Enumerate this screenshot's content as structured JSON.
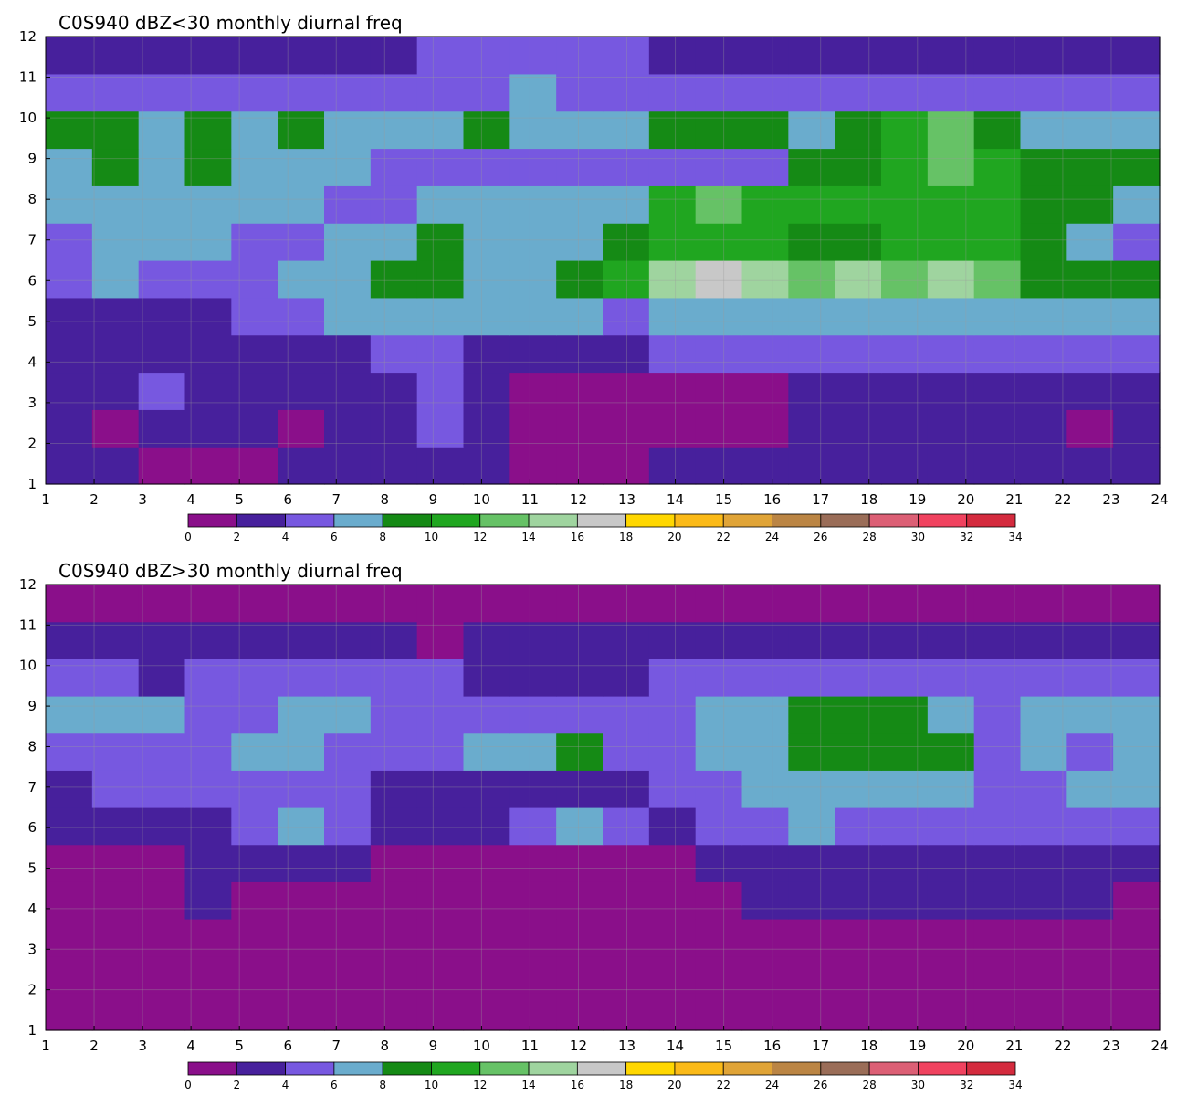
{
  "chart_data": [
    {
      "type": "contour",
      "title": "C0S940 dBZ<30 monthly diurnal freq",
      "xlabel": "",
      "ylabel": "",
      "x_ticks": [
        1,
        2,
        3,
        4,
        5,
        6,
        7,
        8,
        9,
        10,
        11,
        12,
        13,
        14,
        15,
        16,
        17,
        18,
        19,
        20,
        21,
        22,
        23,
        24
      ],
      "y_ticks": [
        1,
        2,
        3,
        4,
        5,
        6,
        7,
        8,
        9,
        10,
        11,
        12
      ],
      "xlim": [
        1,
        24
      ],
      "ylim": [
        1,
        12
      ],
      "colorbar": {
        "levels": [
          0,
          2,
          4,
          6,
          8,
          10,
          12,
          14,
          16,
          18,
          20,
          22,
          24,
          26,
          28,
          30,
          32,
          34
        ],
        "colors": [
          "#8a0f8a",
          "#47209c",
          "#7758e0",
          "#6aaccd",
          "#158a15",
          "#20a620",
          "#66c266",
          "#9fd49f",
          "#c8c8c8",
          "#ffd700",
          "#fbba18",
          "#e0a437",
          "#bb8544",
          "#9a6d58",
          "#dc5f75",
          "#f0425f",
          "#d42b3e"
        ]
      },
      "grid": [
        [
          1,
          1,
          0,
          0,
          0,
          1,
          1,
          1,
          1,
          1,
          0,
          0,
          0,
          1,
          1,
          1,
          1,
          1,
          1,
          1,
          1,
          1,
          1,
          1
        ],
        [
          1,
          0,
          1,
          1,
          1,
          0,
          1,
          1,
          2,
          1,
          0,
          0,
          0,
          0,
          0,
          0,
          1,
          1,
          1,
          1,
          1,
          1,
          0,
          1
        ],
        [
          1,
          1,
          2,
          1,
          1,
          1,
          1,
          1,
          2,
          1,
          0,
          0,
          0,
          0,
          0,
          0,
          1,
          1,
          1,
          1,
          1,
          1,
          1,
          1
        ],
        [
          1,
          1,
          1,
          1,
          1,
          1,
          1,
          2,
          2,
          1,
          1,
          1,
          1,
          2,
          2,
          2,
          2,
          2,
          2,
          2,
          2,
          2,
          2,
          2
        ],
        [
          1,
          1,
          1,
          1,
          2,
          2,
          3,
          3,
          3,
          3,
          3,
          3,
          2,
          3,
          3,
          3,
          3,
          3,
          3,
          3,
          3,
          3,
          3,
          3
        ],
        [
          2,
          3,
          2,
          2,
          2,
          3,
          3,
          4,
          4,
          3,
          3,
          4,
          5,
          7,
          8,
          7,
          6,
          7,
          6,
          7,
          6,
          4,
          4,
          4
        ],
        [
          2,
          3,
          3,
          3,
          2,
          2,
          3,
          3,
          4,
          3,
          3,
          3,
          4,
          5,
          5,
          5,
          4,
          4,
          5,
          5,
          5,
          4,
          3,
          2
        ],
        [
          3,
          3,
          3,
          3,
          3,
          3,
          2,
          2,
          3,
          3,
          3,
          3,
          3,
          5,
          6,
          5,
          5,
          5,
          5,
          5,
          5,
          4,
          4,
          3
        ],
        [
          3,
          4,
          3,
          4,
          3,
          3,
          3,
          2,
          2,
          2,
          2,
          2,
          2,
          2,
          2,
          2,
          4,
          4,
          5,
          6,
          5,
          4,
          4,
          4
        ],
        [
          4,
          4,
          3,
          4,
          3,
          4,
          3,
          3,
          3,
          4,
          3,
          3,
          3,
          4,
          4,
          4,
          3,
          4,
          5,
          6,
          4,
          3,
          3,
          3
        ],
        [
          2,
          2,
          2,
          2,
          2,
          2,
          2,
          2,
          2,
          2,
          3,
          2,
          2,
          2,
          2,
          2,
          2,
          2,
          2,
          2,
          2,
          2,
          2,
          2
        ],
        [
          1,
          1,
          1,
          1,
          1,
          1,
          1,
          1,
          2,
          2,
          2,
          2,
          2,
          1,
          1,
          1,
          1,
          1,
          1,
          1,
          1,
          1,
          1,
          1
        ]
      ]
    },
    {
      "type": "contour",
      "title": "C0S940 dBZ>30 monthly diurnal freq",
      "xlabel": "",
      "ylabel": "",
      "x_ticks": [
        1,
        2,
        3,
        4,
        5,
        6,
        7,
        8,
        9,
        10,
        11,
        12,
        13,
        14,
        15,
        16,
        17,
        18,
        19,
        20,
        21,
        22,
        23,
        24
      ],
      "y_ticks": [
        1,
        2,
        3,
        4,
        5,
        6,
        7,
        8,
        9,
        10,
        11,
        12
      ],
      "xlim": [
        1,
        24
      ],
      "ylim": [
        1,
        12
      ],
      "colorbar": {
        "levels": [
          0,
          2,
          4,
          6,
          8,
          10,
          12,
          14,
          16,
          18,
          20,
          22,
          24,
          26,
          28,
          30,
          32,
          34
        ],
        "colors": [
          "#8a0f8a",
          "#47209c",
          "#7758e0",
          "#6aaccd",
          "#158a15",
          "#20a620",
          "#66c266",
          "#9fd49f",
          "#c8c8c8",
          "#ffd700",
          "#fbba18",
          "#e0a437",
          "#bb8544",
          "#9a6d58",
          "#dc5f75",
          "#f0425f",
          "#d42b3e"
        ]
      },
      "grid": [
        [
          0,
          0,
          0,
          0,
          0,
          0,
          0,
          0,
          0,
          0,
          0,
          0,
          0,
          0,
          0,
          0,
          0,
          0,
          0,
          0,
          0,
          0,
          0,
          0
        ],
        [
          0,
          0,
          0,
          0,
          0,
          0,
          0,
          0,
          0,
          0,
          0,
          0,
          0,
          0,
          0,
          0,
          0,
          0,
          0,
          0,
          0,
          0,
          0,
          0
        ],
        [
          0,
          0,
          0,
          0,
          0,
          0,
          0,
          0,
          0,
          0,
          0,
          0,
          0,
          0,
          0,
          0,
          0,
          0,
          0,
          0,
          0,
          0,
          0,
          0
        ],
        [
          0,
          0,
          0,
          1,
          0,
          0,
          0,
          0,
          0,
          0,
          0,
          0,
          0,
          0,
          0,
          1,
          1,
          1,
          1,
          1,
          1,
          1,
          1,
          0
        ],
        [
          0,
          0,
          0,
          1,
          1,
          1,
          1,
          0,
          0,
          0,
          0,
          0,
          0,
          0,
          1,
          1,
          1,
          1,
          1,
          1,
          1,
          1,
          1,
          1
        ],
        [
          1,
          1,
          1,
          1,
          2,
          3,
          2,
          1,
          1,
          1,
          2,
          3,
          2,
          1,
          2,
          2,
          3,
          2,
          2,
          2,
          2,
          2,
          2,
          2
        ],
        [
          1,
          2,
          2,
          2,
          2,
          2,
          2,
          1,
          1,
          1,
          1,
          1,
          1,
          2,
          2,
          3,
          3,
          3,
          3,
          3,
          2,
          2,
          3,
          3
        ],
        [
          2,
          2,
          2,
          2,
          3,
          3,
          2,
          2,
          2,
          3,
          3,
          4,
          2,
          2,
          3,
          3,
          4,
          4,
          4,
          4,
          2,
          3,
          2,
          3
        ],
        [
          3,
          3,
          3,
          2,
          2,
          3,
          3,
          2,
          2,
          2,
          2,
          2,
          2,
          2,
          3,
          3,
          4,
          4,
          4,
          3,
          2,
          3,
          3,
          3
        ],
        [
          2,
          2,
          1,
          2,
          2,
          2,
          2,
          2,
          2,
          1,
          1,
          1,
          1,
          2,
          2,
          2,
          2,
          2,
          2,
          2,
          2,
          2,
          2,
          2
        ],
        [
          1,
          1,
          1,
          1,
          1,
          1,
          1,
          1,
          0,
          1,
          1,
          1,
          1,
          1,
          1,
          1,
          1,
          1,
          1,
          1,
          1,
          1,
          1,
          1
        ],
        [
          0,
          0,
          0,
          0,
          0,
          0,
          0,
          0,
          0,
          0,
          0,
          0,
          0,
          0,
          0,
          0,
          0,
          0,
          0,
          0,
          0,
          0,
          0,
          0
        ]
      ]
    }
  ]
}
